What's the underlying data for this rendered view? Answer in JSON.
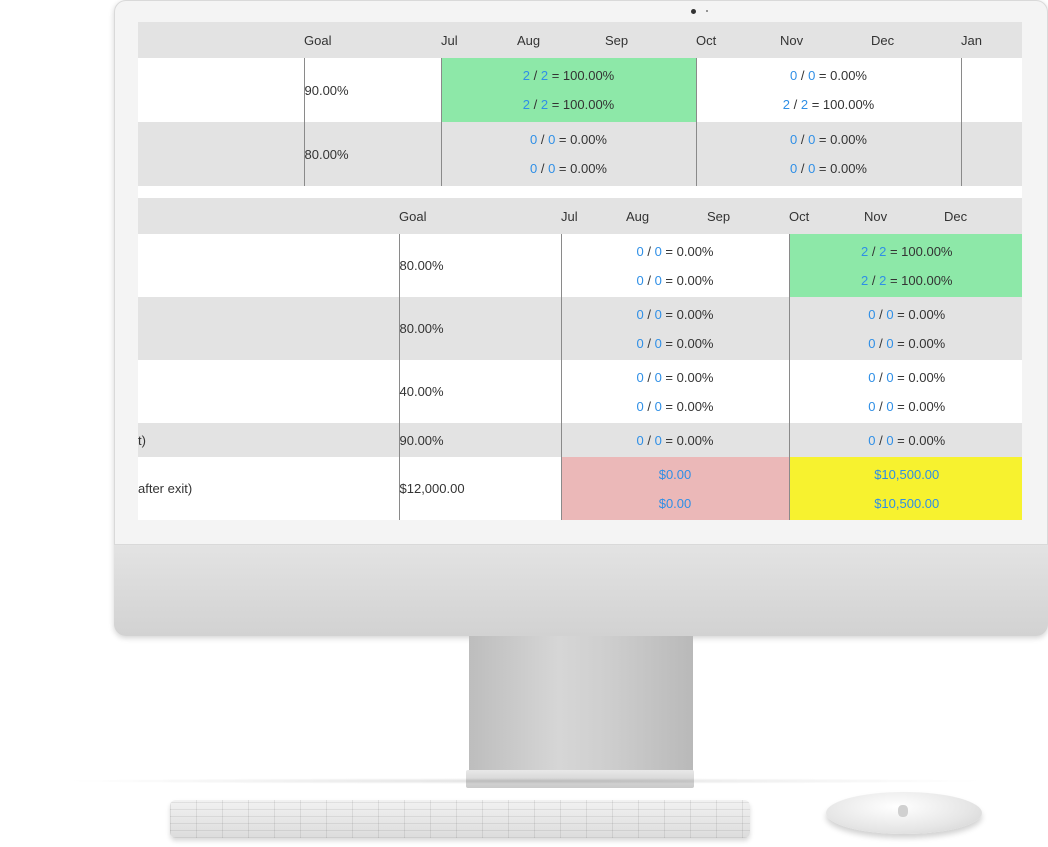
{
  "table1": {
    "headers": [
      "",
      "Goal",
      "Jul",
      "Aug",
      "Sep",
      "Oct",
      "Nov",
      "Dec",
      "Jan"
    ],
    "rows": [
      {
        "label": "",
        "goal": "90.00%",
        "q1": [
          {
            "n": "2",
            "d": "2",
            "r": "100.00%"
          },
          {
            "n": "2",
            "d": "2",
            "r": "100.00%"
          }
        ],
        "q2": [
          {
            "n": "0",
            "d": "0",
            "r": "0.00%"
          },
          {
            "n": "2",
            "d": "2",
            "r": "100.00%"
          }
        ]
      },
      {
        "label": "",
        "goal": "80.00%",
        "q1": [
          {
            "n": "0",
            "d": "0",
            "r": "0.00%"
          },
          {
            "n": "0",
            "d": "0",
            "r": "0.00%"
          }
        ],
        "q2": [
          {
            "n": "0",
            "d": "0",
            "r": "0.00%"
          },
          {
            "n": "0",
            "d": "0",
            "r": "0.00%"
          }
        ]
      }
    ]
  },
  "table2": {
    "headers": [
      "",
      "Goal",
      "Jul",
      "Aug",
      "Sep",
      "Oct",
      "Nov",
      "Dec"
    ],
    "rows": [
      {
        "label": "",
        "goal": "80.00%",
        "q1": [
          {
            "n": "0",
            "d": "0",
            "r": "0.00%"
          },
          {
            "n": "0",
            "d": "0",
            "r": "0.00%"
          }
        ],
        "q2": [
          {
            "n": "2",
            "d": "2",
            "r": "100.00%"
          },
          {
            "n": "2",
            "d": "2",
            "r": "100.00%"
          }
        ]
      },
      {
        "label": "",
        "goal": "80.00%",
        "q1": [
          {
            "n": "0",
            "d": "0",
            "r": "0.00%"
          },
          {
            "n": "0",
            "d": "0",
            "r": "0.00%"
          }
        ],
        "q2": [
          {
            "n": "0",
            "d": "0",
            "r": "0.00%"
          },
          {
            "n": "0",
            "d": "0",
            "r": "0.00%"
          }
        ]
      },
      {
        "label": "",
        "goal": "40.00%",
        "q1": [
          {
            "n": "0",
            "d": "0",
            "r": "0.00%"
          },
          {
            "n": "0",
            "d": "0",
            "r": "0.00%"
          }
        ],
        "q2": [
          {
            "n": "0",
            "d": "0",
            "r": "0.00%"
          },
          {
            "n": "0",
            "d": "0",
            "r": "0.00%"
          }
        ]
      },
      {
        "label": "t)",
        "goal": "90.00%",
        "q1": [
          {
            "n": "0",
            "d": "0",
            "r": "0.00%"
          }
        ],
        "q2": [
          {
            "n": "0",
            "d": "0",
            "r": "0.00%"
          }
        ]
      }
    ],
    "money_row": {
      "label": "after exit)",
      "goal": "$12,000.00",
      "q1": [
        "$0.00",
        "$0.00"
      ],
      "q2": [
        "$10,500.00",
        "$10,500.00"
      ]
    }
  },
  "colors": {
    "met": "#8de8a8",
    "missed": "#ebb8b8",
    "partial": "#f7f22f",
    "link": "#2f8fe6",
    "stripe": "#e3e3e3"
  }
}
